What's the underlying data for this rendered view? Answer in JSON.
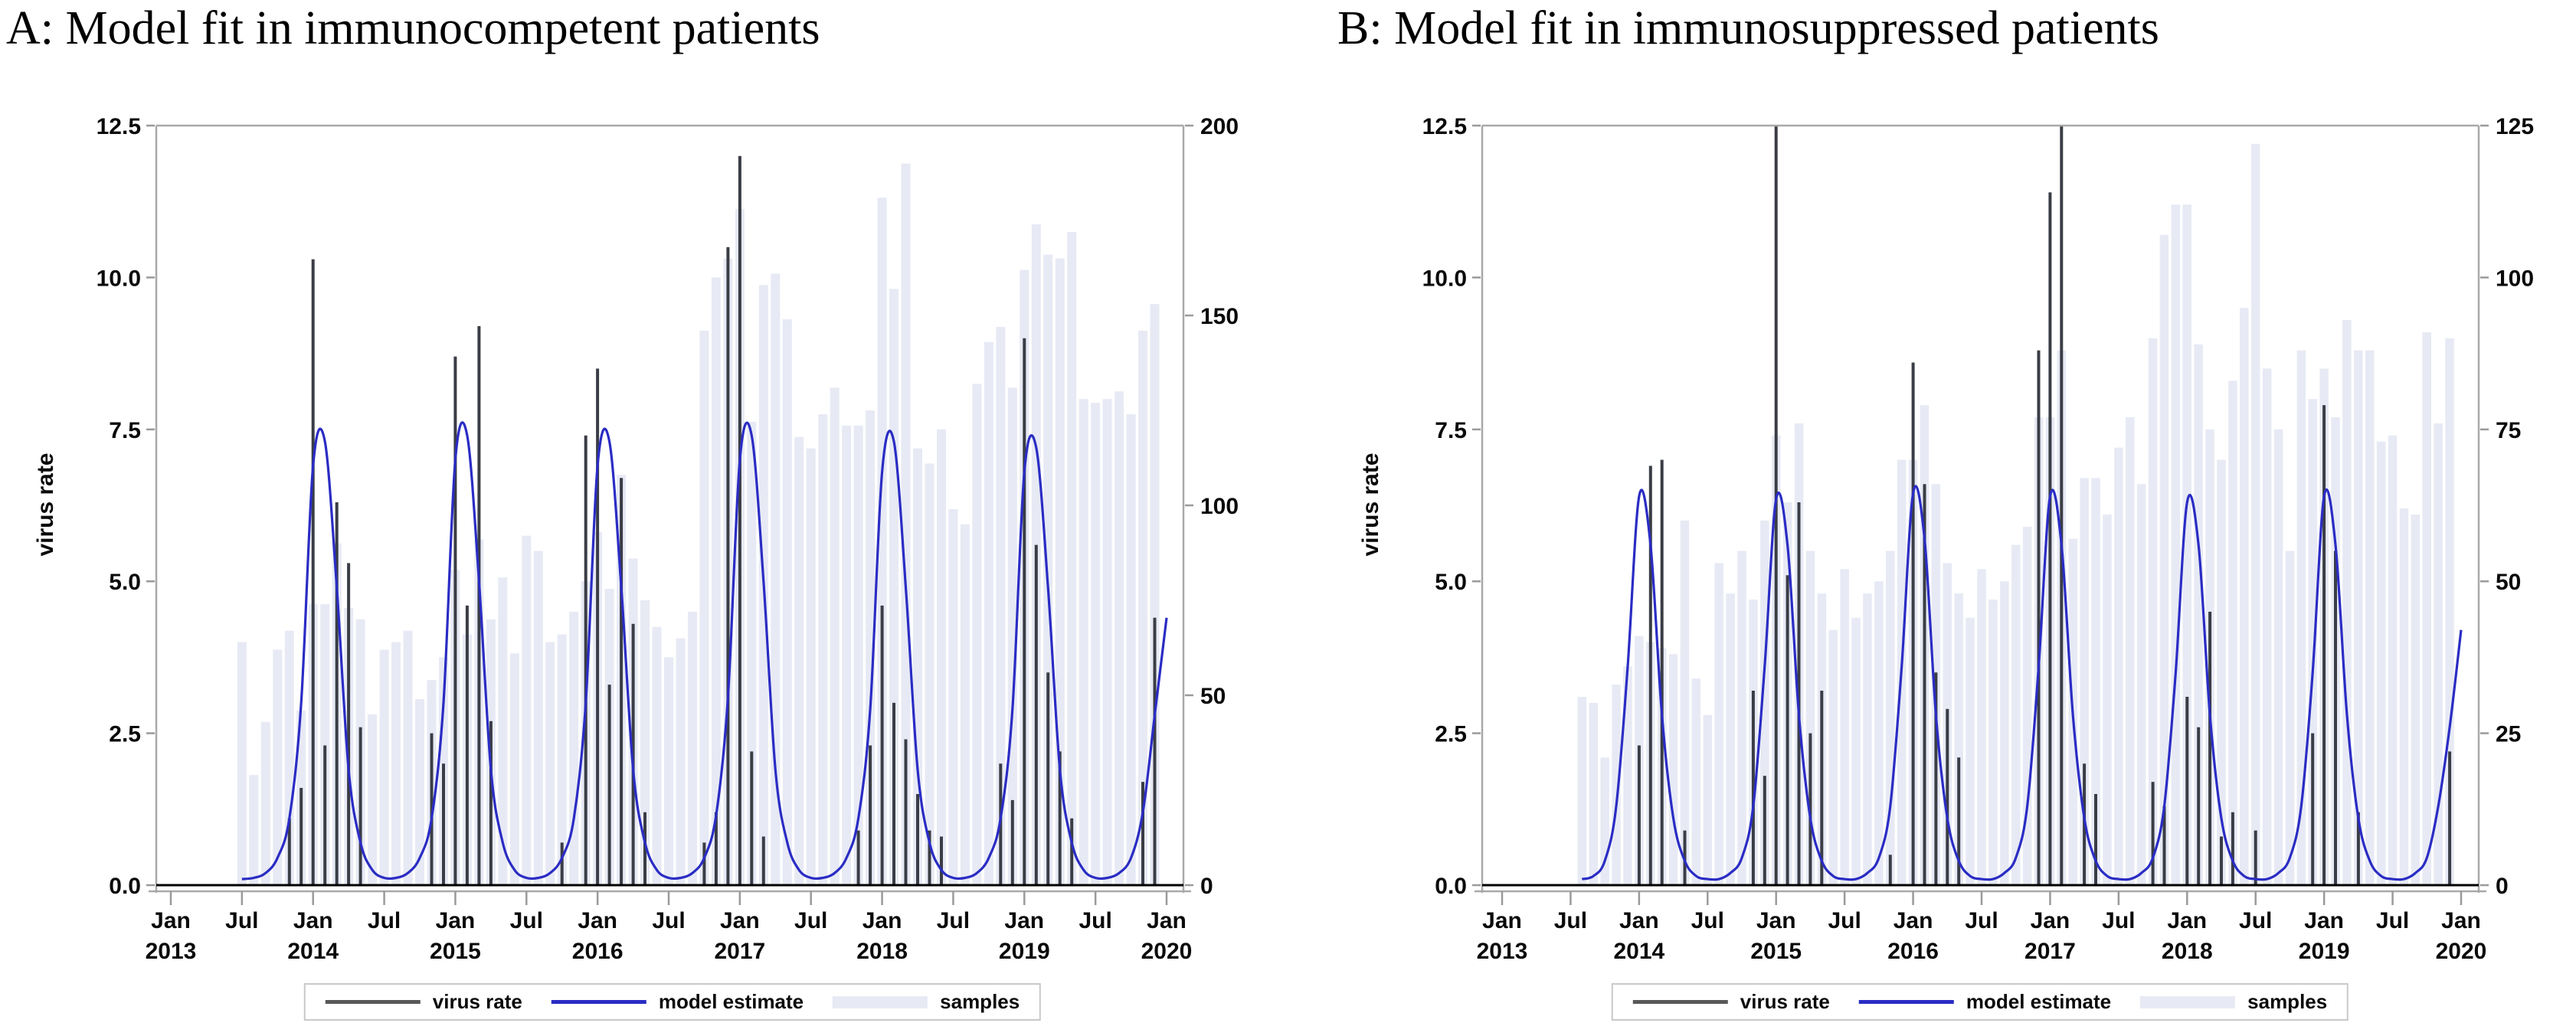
{
  "figure": {
    "colors": {
      "background": "#ffffff",
      "samples": "#e7eaf4",
      "virus_rate": "#3a3d45",
      "virus_rate_legend": "#585858",
      "model": "#2a2cc4",
      "frame": "#a9a9a9",
      "tick": "#9a9a9a",
      "text": "#0a0a0a"
    }
  },
  "chart_data": [
    {
      "panel": "A",
      "type": "combo",
      "title": "A: Model fit in immunocompetent patients",
      "ylabel": "virus rate",
      "x_unit": "month",
      "x_range": [
        "2013-01",
        "2020-01"
      ],
      "left_axis": {
        "max": 12.5,
        "ticks": [
          "0.0",
          "2.5",
          "5.0",
          "7.5",
          "10.0",
          "12.5"
        ]
      },
      "right_axis": {
        "max": 200,
        "ticks": [
          "0",
          "50",
          "100",
          "150",
          "200"
        ]
      },
      "x_axis": {
        "ticks": [
          {
            "month": "Jan",
            "year": "2013"
          },
          {
            "month": "Jul",
            "year": ""
          },
          {
            "month": "Jan",
            "year": "2014"
          },
          {
            "month": "Jul",
            "year": ""
          },
          {
            "month": "Jan",
            "year": "2015"
          },
          {
            "month": "Jul",
            "year": ""
          },
          {
            "month": "Jan",
            "year": "2016"
          },
          {
            "month": "Jul",
            "year": ""
          },
          {
            "month": "Jan",
            "year": "2017"
          },
          {
            "month": "Jul",
            "year": ""
          },
          {
            "month": "Jan",
            "year": "2018"
          },
          {
            "month": "Jul",
            "year": ""
          },
          {
            "month": "Jan",
            "year": "2019"
          },
          {
            "month": "Jul",
            "year": ""
          },
          {
            "month": "Jan",
            "year": "2020"
          }
        ]
      },
      "legend": [
        {
          "label": "virus rate",
          "swatch": "line",
          "color_key": "virus_rate_legend"
        },
        {
          "label": "model estimate",
          "swatch": "line",
          "color_key": "model"
        },
        {
          "label": "samples",
          "swatch": "bar",
          "color_key": "samples"
        }
      ],
      "series": [
        {
          "name": "samples",
          "type": "bar",
          "axis": "right",
          "start_month": "2013-07",
          "values": [
            64,
            29,
            43,
            62,
            67,
            46,
            74,
            74,
            90,
            73,
            70,
            45,
            62,
            64,
            67,
            49,
            54,
            60,
            83,
            66,
            91,
            70,
            81,
            61,
            92,
            88,
            64,
            66,
            72,
            80,
            93,
            78,
            108,
            86,
            75,
            68,
            60,
            65,
            72,
            146,
            160,
            165,
            178,
            122,
            158,
            161,
            149,
            118,
            115,
            124,
            131,
            121,
            121,
            125,
            181,
            157,
            190,
            115,
            111,
            120,
            99,
            95,
            132,
            143,
            147,
            131,
            162,
            174,
            166,
            165,
            172,
            128,
            127,
            128,
            130,
            124,
            146,
            153
          ]
        },
        {
          "name": "virus rate",
          "type": "needle",
          "axis": "left",
          "start_month": "2013-11",
          "values": [
            1.1,
            1.6,
            10.3,
            2.3,
            6.3,
            5.3,
            2.6,
            0,
            0,
            0,
            0,
            0,
            2.5,
            2.0,
            8.7,
            4.6,
            9.2,
            2.7,
            0,
            0,
            0,
            0,
            0,
            0.7,
            0,
            7.4,
            8.5,
            3.3,
            6.7,
            4.3,
            1.2,
            0,
            0,
            0,
            0,
            0.7,
            1.2,
            10.5,
            12.0,
            2.2,
            0.8,
            0,
            0,
            0,
            0,
            0,
            0,
            0,
            0.9,
            2.3,
            4.6,
            3.0,
            2.4,
            1.5,
            0.9,
            0.8,
            0,
            0,
            0,
            0,
            2.0,
            1.4,
            9.0,
            5.6,
            3.5,
            2.2,
            1.1,
            0,
            0,
            0,
            0,
            0,
            1.7,
            4.4
          ]
        },
        {
          "name": "model estimate",
          "type": "line",
          "axis": "left",
          "start_month": "2013-07",
          "values": [
            0.1,
            0.12,
            0.2,
            0.45,
            1.1,
            3.0,
            6.9,
            7.3,
            4.9,
            1.9,
            0.7,
            0.25,
            0.12,
            0.12,
            0.2,
            0.45,
            1.1,
            3.0,
            7.0,
            7.4,
            5.0,
            1.9,
            0.7,
            0.25,
            0.12,
            0.12,
            0.2,
            0.45,
            1.1,
            3.0,
            6.9,
            7.3,
            4.9,
            1.9,
            0.7,
            0.25,
            0.12,
            0.12,
            0.2,
            0.45,
            1.15,
            3.1,
            7.0,
            7.4,
            5.0,
            1.9,
            0.7,
            0.25,
            0.12,
            0.12,
            0.2,
            0.45,
            1.1,
            2.9,
            6.8,
            7.3,
            4.9,
            1.9,
            0.7,
            0.25,
            0.12,
            0.12,
            0.2,
            0.45,
            1.1,
            2.9,
            6.8,
            7.2,
            4.9,
            1.9,
            0.7,
            0.25,
            0.12,
            0.12,
            0.2,
            0.45,
            1.2,
            2.8,
            4.4
          ]
        }
      ]
    },
    {
      "panel": "B",
      "type": "combo",
      "title": "B: Model fit in immunosuppressed patients",
      "ylabel": "virus rate",
      "x_unit": "month",
      "x_range": [
        "2013-01",
        "2020-01"
      ],
      "left_axis": {
        "max": 12.5,
        "ticks": [
          "0.0",
          "2.5",
          "5.0",
          "7.5",
          "10.0",
          "12.5"
        ]
      },
      "right_axis": {
        "max": 125,
        "ticks": [
          "0",
          "25",
          "50",
          "75",
          "100",
          "125"
        ]
      },
      "x_axis": {
        "ticks": [
          {
            "month": "Jan",
            "year": "2013"
          },
          {
            "month": "Jul",
            "year": ""
          },
          {
            "month": "Jan",
            "year": "2014"
          },
          {
            "month": "Jul",
            "year": ""
          },
          {
            "month": "Jan",
            "year": "2015"
          },
          {
            "month": "Jul",
            "year": ""
          },
          {
            "month": "Jan",
            "year": "2016"
          },
          {
            "month": "Jul",
            "year": ""
          },
          {
            "month": "Jan",
            "year": "2017"
          },
          {
            "month": "Jul",
            "year": ""
          },
          {
            "month": "Jan",
            "year": "2018"
          },
          {
            "month": "Jul",
            "year": ""
          },
          {
            "month": "Jan",
            "year": "2019"
          },
          {
            "month": "Jul",
            "year": ""
          },
          {
            "month": "Jan",
            "year": "2020"
          }
        ]
      },
      "legend": [
        {
          "label": "virus rate",
          "swatch": "line",
          "color_key": "virus_rate_legend"
        },
        {
          "label": "model estimate",
          "swatch": "line",
          "color_key": "model"
        },
        {
          "label": "samples",
          "swatch": "bar",
          "color_key": "samples"
        }
      ],
      "series": [
        {
          "name": "samples",
          "type": "bar",
          "axis": "right",
          "start_month": "2013-08",
          "values": [
            31,
            30,
            21,
            33,
            36,
            41,
            40,
            39,
            38,
            60,
            34,
            28,
            53,
            48,
            55,
            47,
            60,
            74,
            63,
            76,
            55,
            48,
            42,
            52,
            44,
            48,
            50,
            55,
            70,
            70,
            79,
            66,
            53,
            48,
            44,
            52,
            47,
            50,
            56,
            59,
            77,
            77,
            88,
            57,
            67,
            67,
            61,
            72,
            77,
            66,
            90,
            107,
            112,
            112,
            89,
            75,
            70,
            83,
            95,
            122,
            85,
            75,
            55,
            88,
            80,
            85,
            77,
            93,
            88,
            88,
            73,
            74,
            62,
            61,
            91,
            76,
            90
          ]
        },
        {
          "name": "virus rate",
          "type": "needle",
          "axis": "left",
          "start_month": "2014-01",
          "values": [
            2.3,
            6.9,
            7.0,
            0,
            0.9,
            0,
            0,
            0,
            0,
            0,
            3.2,
            1.8,
            12.5,
            5.1,
            6.3,
            2.5,
            3.2,
            0,
            0,
            0,
            0,
            0,
            0.5,
            0,
            8.6,
            6.6,
            3.5,
            2.9,
            2.1,
            0,
            0,
            0,
            0,
            0,
            0,
            8.8,
            11.4,
            12.5,
            0,
            2.0,
            1.5,
            0,
            0,
            0,
            0,
            1.7,
            1.3,
            0,
            3.1,
            2.6,
            4.5,
            0.8,
            1.2,
            0,
            0.9,
            0,
            0,
            0,
            0,
            2.5,
            7.9,
            5.5,
            0,
            1.2,
            0,
            0,
            0,
            0,
            0,
            0,
            0,
            2.2
          ]
        },
        {
          "name": "model estimate",
          "type": "line",
          "axis": "left",
          "start_month": "2013-08",
          "values": [
            0.1,
            0.15,
            0.4,
            1.3,
            3.6,
            6.4,
            5.6,
            2.8,
            1.1,
            0.4,
            0.15,
            0.1,
            0.1,
            0.2,
            0.45,
            1.3,
            3.6,
            6.35,
            5.6,
            2.8,
            1.1,
            0.4,
            0.15,
            0.1,
            0.1,
            0.2,
            0.45,
            1.3,
            3.6,
            6.45,
            5.7,
            2.8,
            1.1,
            0.4,
            0.15,
            0.1,
            0.1,
            0.2,
            0.45,
            1.3,
            3.6,
            6.4,
            5.6,
            2.8,
            1.1,
            0.4,
            0.15,
            0.1,
            0.1,
            0.2,
            0.45,
            1.3,
            3.5,
            6.3,
            5.6,
            2.8,
            1.1,
            0.4,
            0.15,
            0.1,
            0.1,
            0.2,
            0.45,
            1.3,
            3.5,
            6.4,
            5.6,
            2.8,
            1.1,
            0.4,
            0.15,
            0.1,
            0.1,
            0.2,
            0.45,
            1.3,
            2.6,
            4.2
          ]
        }
      ]
    }
  ]
}
